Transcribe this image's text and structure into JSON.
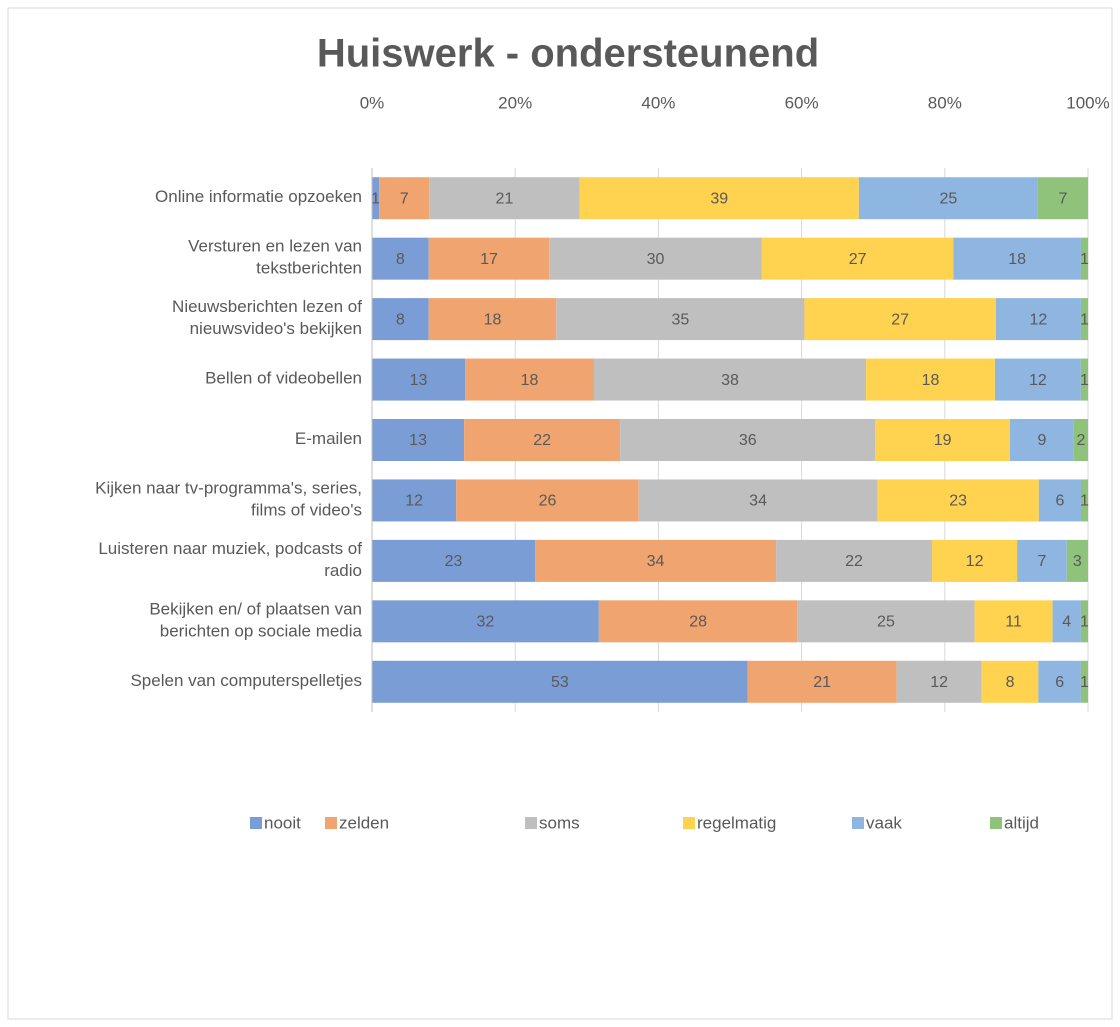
{
  "chart_data": {
    "type": "bar",
    "orientation": "horizontal",
    "stacked": "percent",
    "title": "Huiswerk - ondersteunend",
    "categories": [
      "Online informatie opzoeken",
      "Versturen en lezen van tekstberichten",
      "Nieuwsberichten lezen of nieuwsvideo's bekijken",
      "Bellen of videobellen",
      "E-mailen",
      "Kijken naar tv-programma's, series, films of video's",
      "Luisteren naar muziek, podcasts of radio",
      "Bekijken en/ of plaatsen van berichten op sociale media",
      "Spelen van computerspelletjes"
    ],
    "series": [
      {
        "name": "nooit",
        "color": "#7b9dd6",
        "values": [
          1,
          8,
          8,
          13,
          13,
          12,
          23,
          32,
          53
        ]
      },
      {
        "name": "zelden",
        "color": "#f0a46f",
        "values": [
          7,
          17,
          18,
          18,
          22,
          26,
          34,
          28,
          21
        ]
      },
      {
        "name": "soms",
        "color": "#bfbfbf",
        "values": [
          21,
          30,
          35,
          38,
          36,
          34,
          22,
          25,
          12
        ]
      },
      {
        "name": "regelmatig",
        "color": "#ffd34f",
        "values": [
          39,
          27,
          27,
          18,
          19,
          23,
          12,
          11,
          8
        ]
      },
      {
        "name": "vaak",
        "color": "#8fb5e1",
        "values": [
          25,
          18,
          12,
          12,
          9,
          6,
          7,
          4,
          6
        ]
      },
      {
        "name": "altijd",
        "color": "#8fc27a",
        "values": [
          7,
          1,
          1,
          1,
          2,
          1,
          3,
          1,
          1
        ]
      }
    ],
    "xlim": [
      0,
      100
    ],
    "xticks": [
      {
        "value": 0,
        "label": "0%"
      },
      {
        "value": 20,
        "label": "20%"
      },
      {
        "value": 40,
        "label": "40%"
      },
      {
        "value": 60,
        "label": "60%"
      },
      {
        "value": 80,
        "label": "80%"
      },
      {
        "value": 100,
        "label": "100%"
      }
    ],
    "grid": true,
    "legend": "bottom"
  }
}
